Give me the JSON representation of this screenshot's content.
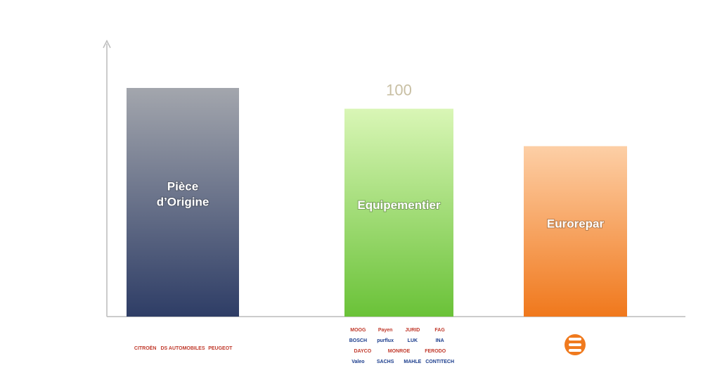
{
  "chart_data": {
    "type": "bar",
    "categories": [
      "Pièce\nd’Origine",
      "Equipementier",
      "Eurorepar"
    ],
    "values": [
      110,
      100,
      82
    ],
    "value_labels": [
      null,
      "100",
      null
    ],
    "colors": [
      [
        "#a3a6ad",
        "#2e3d66"
      ],
      [
        "#d9f6b6",
        "#6ac238"
      ],
      [
        "#fdcfa6",
        "#f0781c"
      ]
    ],
    "ylim": [
      0,
      132
    ],
    "logos": [
      [
        [
          "CITROËN",
          "DS AUTOMOBILES",
          "PEUGEOT"
        ]
      ],
      [
        [
          "MOOG",
          "Payen",
          "JURID",
          "FAG"
        ],
        [
          "BOSCH",
          "purflux",
          "LUK",
          "INA"
        ],
        [
          "DAYCO",
          "MONROE",
          "FERODO"
        ],
        [
          "Valeo",
          "SACHS",
          "MAHLE",
          "CONTITECH"
        ]
      ],
      []
    ]
  }
}
